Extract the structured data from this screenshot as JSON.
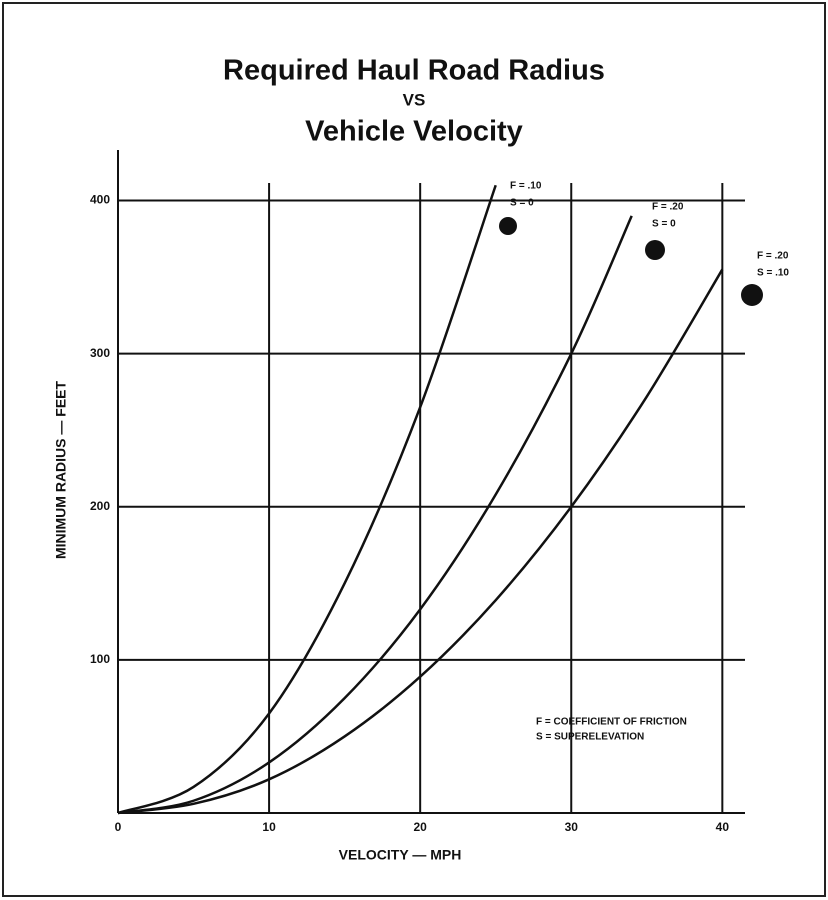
{
  "chart_data": {
    "type": "line",
    "title": "Required Haul Road Radius",
    "subtitle": "VS",
    "title2": "Vehicle Velocity",
    "x_label": "VELOCITY — MPH",
    "y_label": "MINIMUM RADIUS — FEET",
    "xlim": [
      0,
      41.5
    ],
    "ylim": [
      0,
      433
    ],
    "xticks": [
      0,
      10,
      20,
      30,
      40
    ],
    "yticks": [
      100,
      200,
      300,
      400
    ],
    "grid": true,
    "color": "#111111",
    "notes": [
      "F = COEFFICIENT OF FRICTION",
      "S = SUPERELEVATION"
    ],
    "series": [
      {
        "f_label": "F = .10",
        "s_label": "S = 0",
        "x": [
          0,
          5,
          10,
          15,
          20,
          25
        ],
        "values": [
          0,
          17,
          65,
          150,
          265,
          410
        ]
      },
      {
        "f_label": "F = .20",
        "s_label": "S = 0",
        "x": [
          0,
          5,
          10,
          15,
          20,
          25,
          30,
          34
        ],
        "values": [
          0,
          8,
          33,
          75,
          133,
          208,
          300,
          390
        ]
      },
      {
        "f_label": "F = .20",
        "s_label": "S = .10",
        "x": [
          0,
          5,
          10,
          15,
          20,
          25,
          30,
          35,
          40
        ],
        "values": [
          0,
          6,
          22,
          50,
          89,
          139,
          200,
          272,
          355
        ]
      }
    ]
  }
}
